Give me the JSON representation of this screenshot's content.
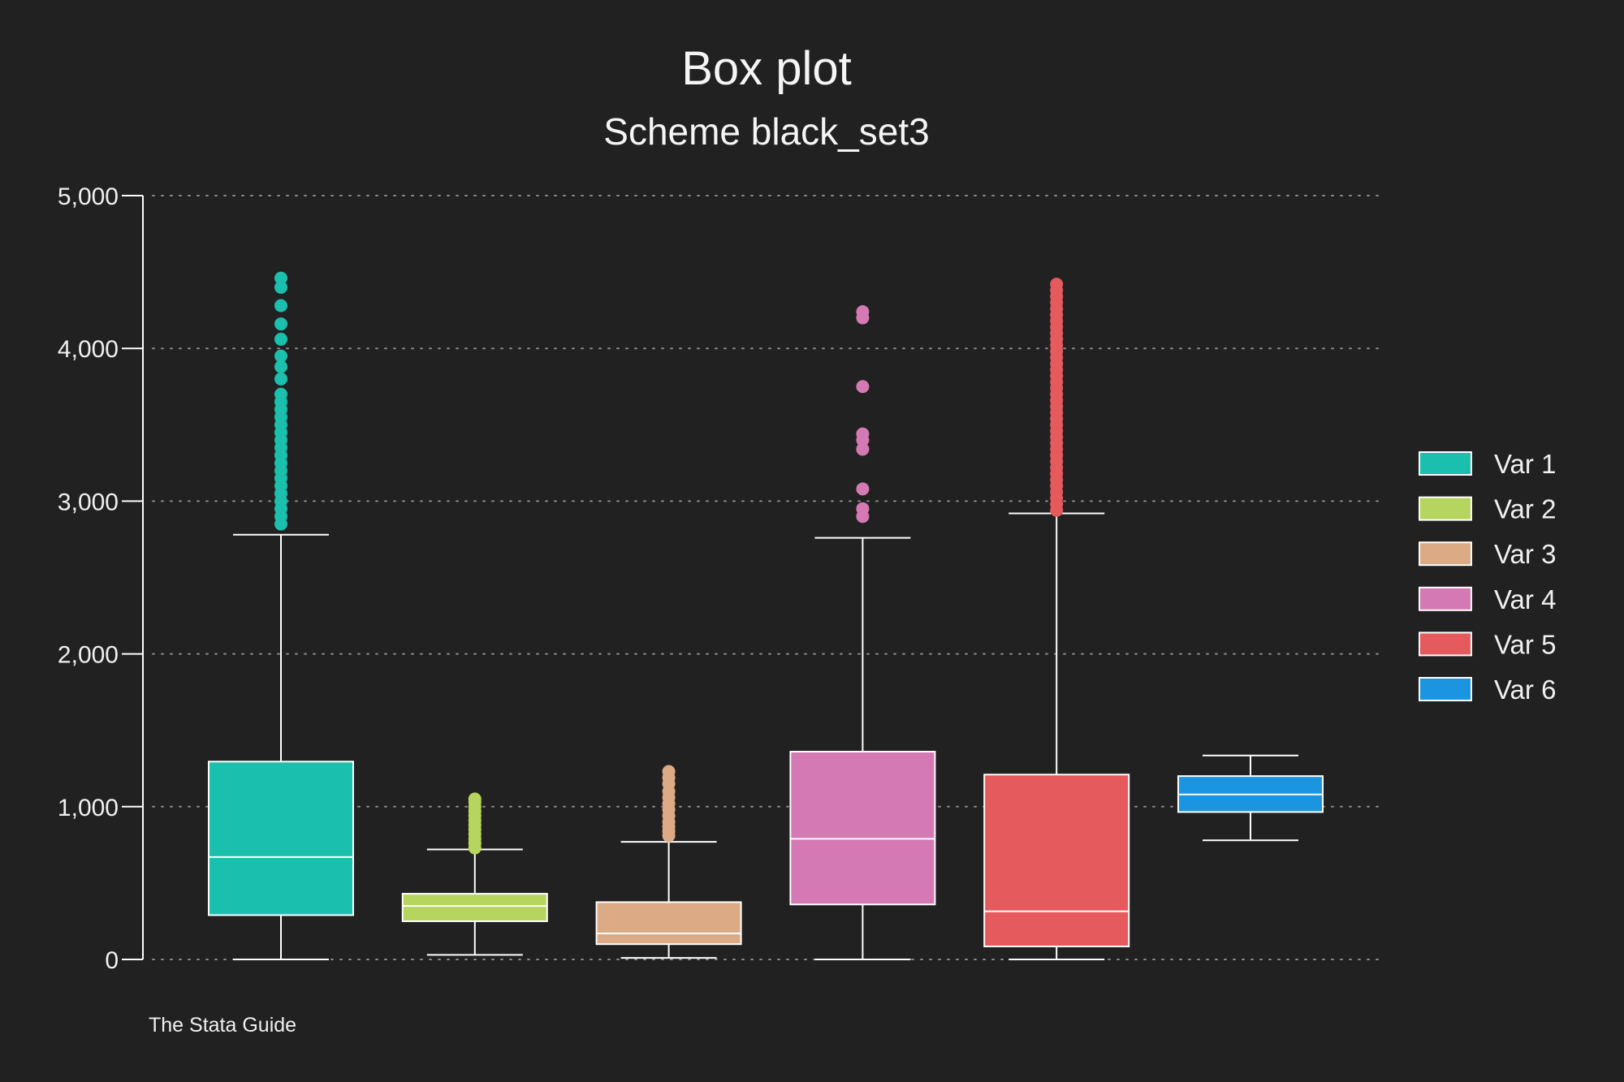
{
  "chart_data": {
    "type": "box",
    "title": "Box plot",
    "subtitle": "Scheme black_set3",
    "note": "The Stata Guide",
    "xlabel": "",
    "ylabel": "",
    "ylim": [
      0,
      5000
    ],
    "yticks": [
      0,
      1000,
      2000,
      3000,
      4000,
      5000
    ],
    "ytick_labels": [
      "0",
      "1,000",
      "2,000",
      "3,000",
      "4,000",
      "5,000"
    ],
    "grid": true,
    "legend_position": "right",
    "series": [
      {
        "name": "Var 1",
        "color": "#1bbfad",
        "min": 0,
        "q1": 290,
        "median": 670,
        "q3": 1295,
        "max": 2780,
        "outliers": [
          2850,
          2900,
          2950,
          3000,
          3050,
          3100,
          3150,
          3200,
          3250,
          3300,
          3350,
          3400,
          3450,
          3500,
          3550,
          3600,
          3650,
          3700,
          3800,
          3880,
          3950,
          4060,
          4160,
          4280,
          4400,
          4460
        ]
      },
      {
        "name": "Var 2",
        "color": "#b5d55e",
        "min": 30,
        "q1": 250,
        "median": 350,
        "q3": 430,
        "max": 720,
        "outliers": [
          730,
          760,
          790,
          820,
          850,
          880,
          910,
          940,
          970,
          1000,
          1030,
          1050
        ]
      },
      {
        "name": "Var 3",
        "color": "#dcaa84",
        "min": 10,
        "q1": 100,
        "median": 170,
        "q3": 375,
        "max": 770,
        "outliers": [
          810,
          840,
          870,
          900,
          940,
          980,
          1020,
          1060,
          1100,
          1150,
          1190,
          1230
        ]
      },
      {
        "name": "Var 4",
        "color": "#d479b3",
        "min": 0,
        "q1": 360,
        "median": 790,
        "q3": 1360,
        "max": 2760,
        "outliers": [
          2900,
          2950,
          3080,
          3340,
          3400,
          3440,
          3750,
          4200,
          4240
        ]
      },
      {
        "name": "Var 5",
        "color": "#e55a5c",
        "min": 0,
        "q1": 85,
        "median": 315,
        "q3": 1210,
        "max": 2920,
        "outliers": [
          2940,
          2980,
          3020,
          3060,
          3100,
          3140,
          3180,
          3220,
          3260,
          3300,
          3340,
          3380,
          3420,
          3460,
          3500,
          3540,
          3580,
          3620,
          3660,
          3700,
          3740,
          3780,
          3820,
          3860,
          3900,
          3940,
          3980,
          4020,
          4060,
          4100,
          4140,
          4180,
          4220,
          4260,
          4300,
          4340,
          4380,
          4420
        ]
      },
      {
        "name": "Var 6",
        "color": "#1b95e0",
        "min": 780,
        "q1": 965,
        "median": 1080,
        "q3": 1200,
        "max": 1335,
        "outliers": []
      }
    ]
  }
}
